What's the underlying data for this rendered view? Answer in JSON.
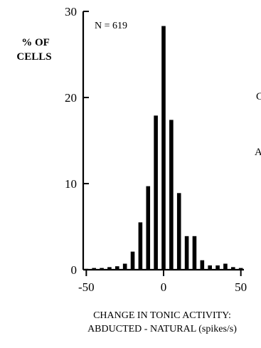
{
  "chart_data": {
    "type": "bar",
    "ylabel_lines": [
      "% OF",
      "CELLS"
    ],
    "xlabel_lines": [
      "CHANGE IN TONIC ACTIVITY:",
      "ABDUCTED - NATURAL (spikes/s)"
    ],
    "annotation": "N = 619",
    "xlim": [
      -52,
      52
    ],
    "ylim": [
      0,
      30
    ],
    "x_ticks": [
      -50,
      0,
      50
    ],
    "y_ticks": [
      0,
      10,
      20,
      30
    ],
    "x_tick_labels": [
      "-50",
      "0",
      "50"
    ],
    "y_tick_labels": [
      "0",
      "10",
      "20",
      "30"
    ],
    "grid": false,
    "bar_color": "#000000",
    "x": [
      -50,
      -45,
      -40,
      -35,
      -30,
      -25,
      -20,
      -15,
      -10,
      -5,
      0,
      5,
      10,
      15,
      20,
      25,
      30,
      35,
      40,
      45,
      50
    ],
    "values": [
      0.1,
      0.2,
      0.2,
      0.3,
      0.4,
      0.7,
      2.1,
      5.5,
      9.7,
      17.9,
      28.3,
      17.4,
      8.9,
      3.9,
      3.9,
      1.1,
      0.5,
      0.5,
      0.7,
      0.3,
      0.2
    ]
  },
  "cutoff_text": [
    {
      "text": "C"
    },
    {
      "text": "A"
    }
  ]
}
